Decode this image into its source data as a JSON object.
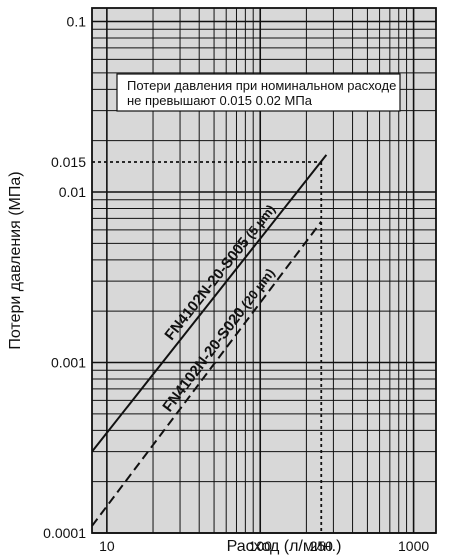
{
  "chart_data": {
    "type": "line",
    "xscale": "log",
    "yscale": "log",
    "xlim": [
      8,
      1400
    ],
    "ylim": [
      0.0001,
      0.12
    ],
    "xlabel": "Расход (л/мин.)",
    "ylabel": "Потери давления (МПа)",
    "xticks": [
      "10",
      "100",
      "250",
      "1000"
    ],
    "yticks": [
      "0.1",
      "0.015",
      "0.01",
      "0.001",
      "0.0001"
    ],
    "grid": true,
    "annotation": {
      "line1": "Потери давления при номинальном расходе",
      "line2": "не превышают 0.015   0.02 МПа"
    },
    "reference": {
      "x": 250,
      "y": 0.015
    },
    "series": [
      {
        "name": "FN4102N-20-S005",
        "name_suffix": "(5 µm)",
        "style": "solid",
        "x": [
          8,
          270
        ],
        "y": [
          0.0003,
          0.0165
        ]
      },
      {
        "name": "FN4102N-20-S020",
        "name_suffix": "(20 µm)",
        "style": "dashed",
        "x": [
          8,
          250
        ],
        "y": [
          0.00011,
          0.0067
        ]
      }
    ],
    "colors": {
      "background": "#d8d8d8",
      "grid": "#111111",
      "line": "#111111"
    }
  }
}
